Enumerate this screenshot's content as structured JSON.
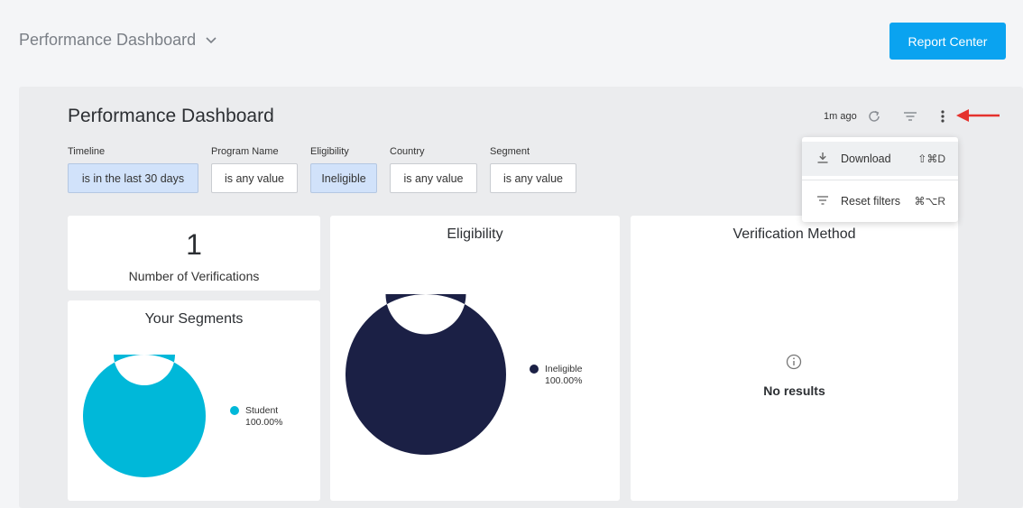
{
  "header": {
    "title": "Performance Dashboard",
    "report_button": "Report Center"
  },
  "dashboard": {
    "title": "Performance Dashboard",
    "updated": "1m ago"
  },
  "filters": [
    {
      "label": "Timeline",
      "value": "is in the last 30 days",
      "active": true
    },
    {
      "label": "Program Name",
      "value": "is any value",
      "active": false
    },
    {
      "label": "Eligibility",
      "value": "Ineligible",
      "active": true
    },
    {
      "label": "Country",
      "value": "is any value",
      "active": false
    },
    {
      "label": "Segment",
      "value": "is any value",
      "active": false
    }
  ],
  "menu": {
    "download_label": "Download",
    "download_shortcut": "⇧⌘D",
    "reset_label": "Reset filters",
    "reset_shortcut": "⌘⌥R"
  },
  "kpi": {
    "value": "1",
    "label": "Number of Verifications"
  },
  "segments_card": {
    "title": "Your Segments",
    "chart_data": {
      "type": "pie",
      "categories": [
        "Student"
      ],
      "values": [
        100.0
      ],
      "labels": [
        "100.00%"
      ],
      "colors": [
        "#00b8d9"
      ],
      "donut": true
    }
  },
  "eligibility_card": {
    "title": "Eligibility",
    "chart_data": {
      "type": "pie",
      "categories": [
        "Ineligible"
      ],
      "values": [
        100.0
      ],
      "labels": [
        "100.00%"
      ],
      "colors": [
        "#1b2045"
      ],
      "donut": true
    }
  },
  "verification_card": {
    "title": "Verification Method",
    "empty_text": "No results"
  },
  "colors": {
    "accent": "#0aa3f0",
    "arrow": "#e5322d"
  }
}
